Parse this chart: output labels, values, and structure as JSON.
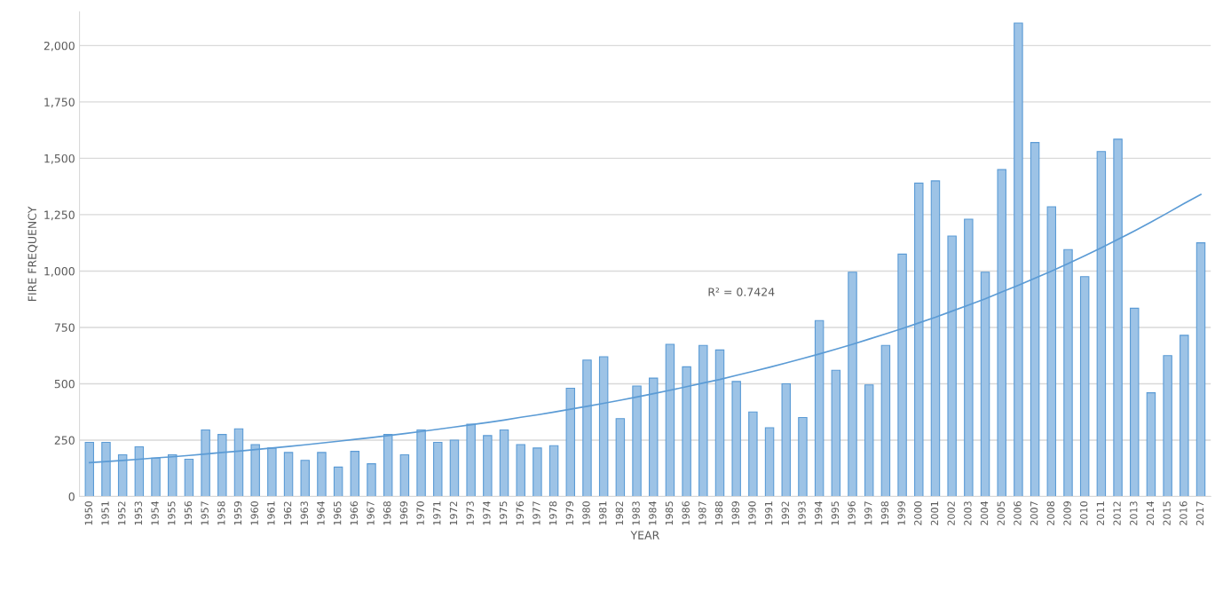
{
  "chart_data": {
    "type": "bar",
    "xlabel": "YEAR",
    "ylabel": "FIRE FREQUENCY",
    "categories": [
      "1950",
      "1951",
      "1952",
      "1953",
      "1954",
      "1955",
      "1956",
      "1957",
      "1958",
      "1959",
      "1960",
      "1961",
      "1962",
      "1963",
      "1964",
      "1965",
      "1966",
      "1967",
      "1968",
      "1969",
      "1970",
      "1971",
      "1972",
      "1973",
      "1974",
      "1975",
      "1976",
      "1977",
      "1978",
      "1979",
      "1980",
      "1981",
      "1982",
      "1983",
      "1984",
      "1985",
      "1986",
      "1987",
      "1988",
      "1989",
      "1990",
      "1991",
      "1992",
      "1993",
      "1994",
      "1995",
      "1996",
      "1997",
      "1998",
      "1999",
      "2000",
      "2001",
      "2002",
      "2003",
      "2004",
      "2005",
      "2006",
      "2007",
      "2008",
      "2009",
      "2010",
      "2011",
      "2012",
      "2013",
      "2014",
      "2015",
      "2016",
      "2017"
    ],
    "series": [
      {
        "color": "#9dc3e6",
        "values": [
          240,
          240,
          185,
          220,
          170,
          185,
          165,
          295,
          275,
          300,
          230,
          215,
          195,
          160,
          195,
          130,
          200,
          145,
          275,
          185,
          295,
          240,
          250,
          320,
          270,
          295,
          230,
          215,
          225,
          480,
          605,
          620,
          345,
          490,
          525,
          675,
          575,
          670,
          650,
          510,
          375,
          305,
          500,
          350,
          780,
          560,
          995,
          495,
          670,
          1075,
          1390,
          1400,
          1155,
          1230,
          995,
          1450,
          2100,
          1570,
          1285,
          1095,
          975,
          1530,
          1585,
          835,
          460,
          625,
          715,
          1125
        ]
      },
      {
        "type": "line",
        "color": "#5b9bd5",
        "values": [
          150,
          155,
          160,
          165,
          171,
          176,
          182,
          188,
          195,
          201,
          208,
          215,
          222,
          229,
          237,
          245,
          253,
          261,
          270,
          279,
          288,
          298,
          308,
          318,
          328,
          339,
          351,
          362,
          374,
          387,
          400,
          413,
          427,
          441,
          456,
          471,
          487,
          503,
          519,
          537,
          555,
          573,
          592,
          612,
          632,
          653,
          675,
          698,
          721,
          745,
          770,
          795,
          822,
          849,
          877,
          907,
          937,
          968,
          1000,
          1033,
          1068,
          1103,
          1140,
          1178,
          1217,
          1258,
          1300,
          1340
        ]
      }
    ],
    "annotations": [
      "R² = 0.7424"
    ],
    "ylim": [
      0,
      2150
    ],
    "yticks": [
      0,
      250,
      500,
      750,
      {
        "value": 1000,
        "label": "1,000"
      },
      {
        "value": 1250,
        "label": "1,250"
      },
      {
        "value": 1500,
        "label": "1,500"
      },
      {
        "value": 1750,
        "label": "1,750"
      },
      {
        "value": 2000,
        "label": "2,000"
      }
    ],
    "grid": "y"
  }
}
